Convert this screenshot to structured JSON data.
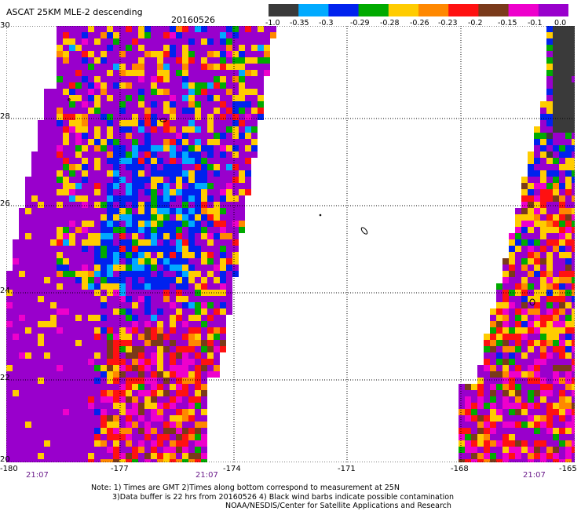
{
  "header": {
    "title": "ASCAT 25KM MLE-2 descending",
    "date": "20160526"
  },
  "colorbar": {
    "labels": [
      "-1.0",
      "-0.35",
      "-0.3",
      "-0.29",
      "-0.28",
      "-0.26",
      "-0.23",
      "-0.2",
      "-0.15",
      "-0.1",
      "0.0"
    ],
    "colors": [
      "#3a3a3a",
      "#00aaff",
      "#0022ee",
      "#00aa00",
      "#ffcc00",
      "#ff8800",
      "#ff1111",
      "#7a3a1a",
      "#ee00cc",
      "#9900cc"
    ]
  },
  "map": {
    "lat_ticks": [
      "30",
      "28",
      "26",
      "24",
      "22",
      "20"
    ],
    "lon_ticks": [
      "-180",
      "-177",
      "-174",
      "-171",
      "-168",
      "-165"
    ],
    "times": [
      "21:07",
      "21:07",
      "21:07"
    ],
    "swath_colors": {
      "dark": "#3a3a3a",
      "cyan": "#00aaff",
      "blue": "#0022ee",
      "green": "#00aa00",
      "yellow": "#ffcc00",
      "orange": "#ff8800",
      "red": "#ff1111",
      "brown": "#7a3a1a",
      "magenta": "#ee00cc",
      "purple": "#9900cc"
    }
  },
  "notes": {
    "line1": "Note: 1) Times are GMT 2)Times along bottom correspond to measurement at 25N",
    "line2": "3)Data buffer is 22 hrs from 20160526 4) Black wind barbs indicate possible contamination",
    "line3": "NOAA/NESDIS/Center for Satellite Applications and Research"
  }
}
